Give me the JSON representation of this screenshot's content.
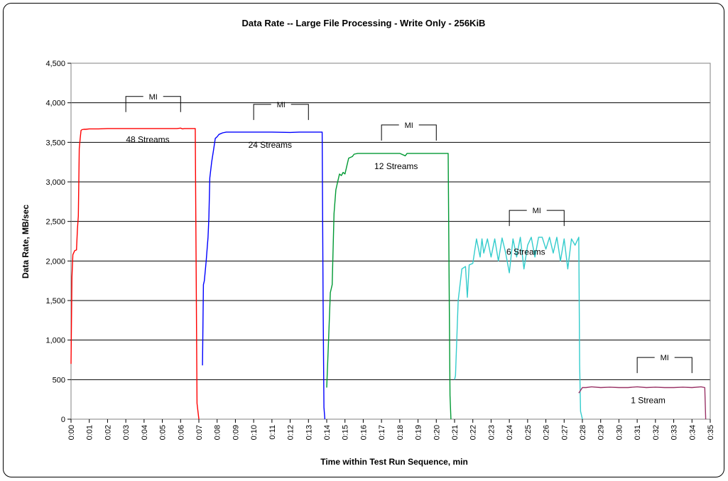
{
  "chart_data": {
    "type": "line",
    "title": "Data Rate -- Large File Processing - Write Only - 256KiB",
    "xlabel": "Time within Test Run Sequence, min",
    "ylabel": "Data Rate, MB/sec",
    "ylim": [
      0,
      4500
    ],
    "xlim": [
      0,
      35
    ],
    "yticks": [
      0,
      500,
      1000,
      1500,
      2000,
      2500,
      3000,
      3500,
      4000,
      4500
    ],
    "ytick_labels": [
      "0",
      "500",
      "1,000",
      "1,500",
      "2,000",
      "2,500",
      "3,000",
      "3,500",
      "4,000",
      "4,500"
    ],
    "xtick_labels": [
      "0:00",
      "0:01",
      "0:02",
      "0:03",
      "0:04",
      "0:05",
      "0:06",
      "0:07",
      "0:08",
      "0:09",
      "0:10",
      "0:11",
      "0:12",
      "0:13",
      "0:14",
      "0:15",
      "0:16",
      "0:17",
      "0:18",
      "0:19",
      "0:20",
      "0:21",
      "0:22",
      "0:23",
      "0:24",
      "0:25",
      "0:26",
      "0:27",
      "0:28",
      "0:29",
      "0:30",
      "0:31",
      "0:32",
      "0:33",
      "0:34",
      "0:35"
    ],
    "grid": "horizontal",
    "legend": "none",
    "series": [
      {
        "color": "#ff0000",
        "x": [
          0.0,
          0.05,
          0.1,
          0.2,
          0.3,
          0.35,
          0.4,
          0.45,
          0.5,
          0.55,
          0.6,
          0.7,
          0.8,
          1.0,
          1.5,
          2.0,
          3.0,
          4.0,
          5.0,
          5.8,
          6.0,
          6.1,
          6.2,
          6.8,
          6.85,
          6.9,
          7.0
        ],
        "y": [
          700,
          1800,
          2080,
          2130,
          2140,
          2400,
          2570,
          3420,
          3550,
          3650,
          3660,
          3665,
          3665,
          3670,
          3670,
          3675,
          3675,
          3675,
          3675,
          3675,
          3680,
          3670,
          3675,
          3675,
          2000,
          200,
          0
        ]
      },
      {
        "color": "#0000ff",
        "x": [
          7.2,
          7.25,
          7.3,
          7.4,
          7.5,
          7.55,
          7.6,
          7.7,
          7.8,
          7.9,
          8.0,
          8.1,
          8.3,
          8.5,
          9.0,
          10.0,
          11.0,
          12.0,
          12.5,
          13.0,
          13.4,
          13.75,
          13.8,
          13.85,
          13.9
        ],
        "y": [
          680,
          1700,
          1750,
          2000,
          2300,
          2550,
          3050,
          3250,
          3400,
          3550,
          3570,
          3600,
          3620,
          3630,
          3630,
          3630,
          3630,
          3625,
          3630,
          3630,
          3630,
          3630,
          1500,
          150,
          0
        ]
      },
      {
        "color": "#009933",
        "x": [
          14.0,
          14.1,
          14.2,
          14.3,
          14.4,
          14.5,
          14.6,
          14.7,
          14.8,
          14.9,
          15.0,
          15.1,
          15.2,
          15.4,
          15.5,
          15.7,
          16.0,
          17.0,
          18.0,
          18.3,
          18.4,
          19.0,
          20.0,
          20.6,
          20.65,
          20.7,
          20.75,
          20.8
        ],
        "y": [
          400,
          1000,
          1600,
          1700,
          2600,
          2900,
          3000,
          3100,
          3080,
          3120,
          3100,
          3200,
          3300,
          3320,
          3350,
          3360,
          3360,
          3360,
          3360,
          3330,
          3360,
          3360,
          3360,
          3360,
          3360,
          1800,
          300,
          0
        ]
      },
      {
        "color": "#33cccc",
        "x": [
          21.0,
          21.05,
          21.2,
          21.4,
          21.6,
          21.7,
          21.8,
          22.0,
          22.2,
          22.4,
          22.5,
          22.6,
          22.8,
          23.0,
          23.2,
          23.4,
          23.6,
          23.8,
          24.0,
          24.2,
          24.4,
          24.6,
          24.8,
          25.0,
          25.2,
          25.4,
          25.6,
          25.8,
          26.0,
          26.2,
          26.4,
          26.6,
          26.8,
          27.0,
          27.2,
          27.4,
          27.6,
          27.8,
          27.85,
          27.9,
          28.0
        ],
        "y": [
          500,
          550,
          1500,
          1900,
          1930,
          1540,
          1950,
          1970,
          2280,
          2050,
          2280,
          2100,
          2280,
          2050,
          2280,
          2000,
          2290,
          2100,
          1850,
          2280,
          2050,
          2300,
          1900,
          2200,
          2300,
          2050,
          2300,
          2300,
          2150,
          2300,
          2100,
          2300,
          2000,
          2280,
          1900,
          2280,
          2200,
          2300,
          700,
          100,
          0
        ]
      },
      {
        "color": "#993366",
        "x": [
          27.8,
          28.0,
          28.2,
          28.5,
          29.0,
          29.5,
          30.0,
          30.5,
          31.0,
          31.5,
          32.0,
          32.5,
          33.0,
          33.5,
          34.0,
          34.5,
          34.7,
          34.75
        ],
        "y": [
          330,
          400,
          400,
          410,
          400,
          405,
          400,
          400,
          410,
          400,
          405,
          400,
          400,
          405,
          400,
          410,
          400,
          0
        ]
      }
    ],
    "annotations": [
      {
        "text": "48 Streams",
        "x": 4.2,
        "y": 3500
      },
      {
        "text": "24 Streams",
        "x": 10.9,
        "y": 3430
      },
      {
        "text": "12 Streams",
        "x": 17.8,
        "y": 3160
      },
      {
        "text": "6 Streams",
        "x": 24.9,
        "y": 2080
      },
      {
        "text": "1 Stream",
        "x": 31.6,
        "y": 200
      }
    ],
    "mi_brackets": [
      {
        "text": "MI",
        "x_start": 3.0,
        "x_end": 6.0,
        "y": 4080
      },
      {
        "text": "MI",
        "x_start": 10.0,
        "x_end": 13.0,
        "y": 3980
      },
      {
        "text": "MI",
        "x_start": 17.0,
        "x_end": 20.0,
        "y": 3720
      },
      {
        "text": "MI",
        "x_start": 24.0,
        "x_end": 27.0,
        "y": 2640
      },
      {
        "text": "MI",
        "x_start": 31.0,
        "x_end": 34.0,
        "y": 780
      }
    ]
  }
}
